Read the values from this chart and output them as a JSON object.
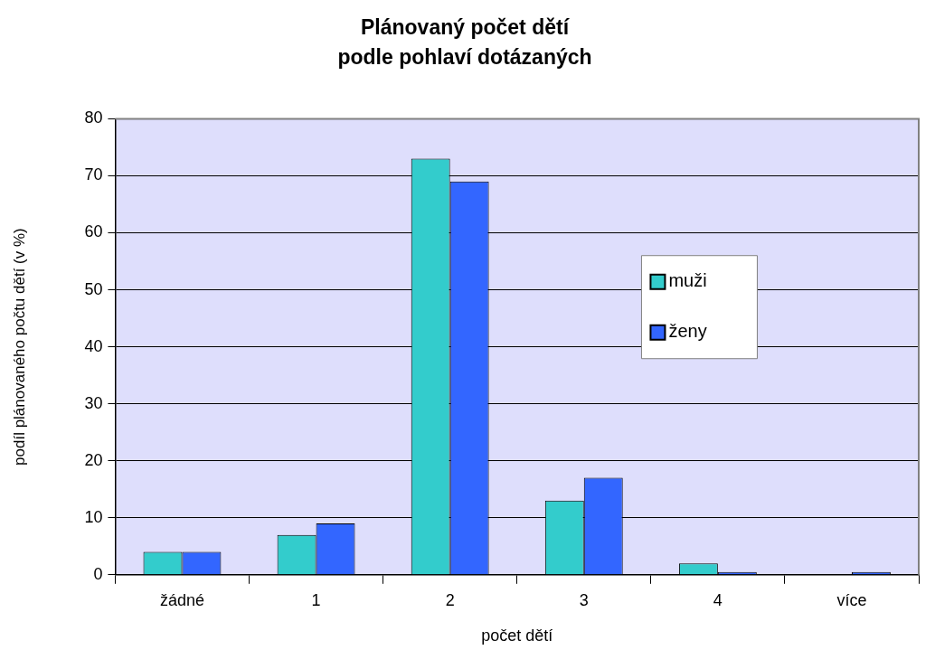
{
  "chart_data": {
    "type": "bar",
    "title": "Plánovaný počet dětí\npodle pohlaví dotázaných",
    "xlabel": "počet dětí",
    "ylabel": "podíl plánovaného počtu dětí (v %)",
    "categories": [
      "žádné",
      "1",
      "2",
      "3",
      "4",
      "více"
    ],
    "series": [
      {
        "name": "muži",
        "color": "#33cccc",
        "values": [
          4,
          7,
          73,
          13,
          2,
          0
        ]
      },
      {
        "name": "ženy",
        "color": "#3366ff",
        "values": [
          4,
          9,
          69,
          17,
          0.5,
          0.5
        ]
      }
    ],
    "ylim": [
      0,
      80
    ],
    "yticks": [
      0,
      10,
      20,
      30,
      40,
      50,
      60,
      70,
      80
    ],
    "grid": "y",
    "legend": "right"
  }
}
